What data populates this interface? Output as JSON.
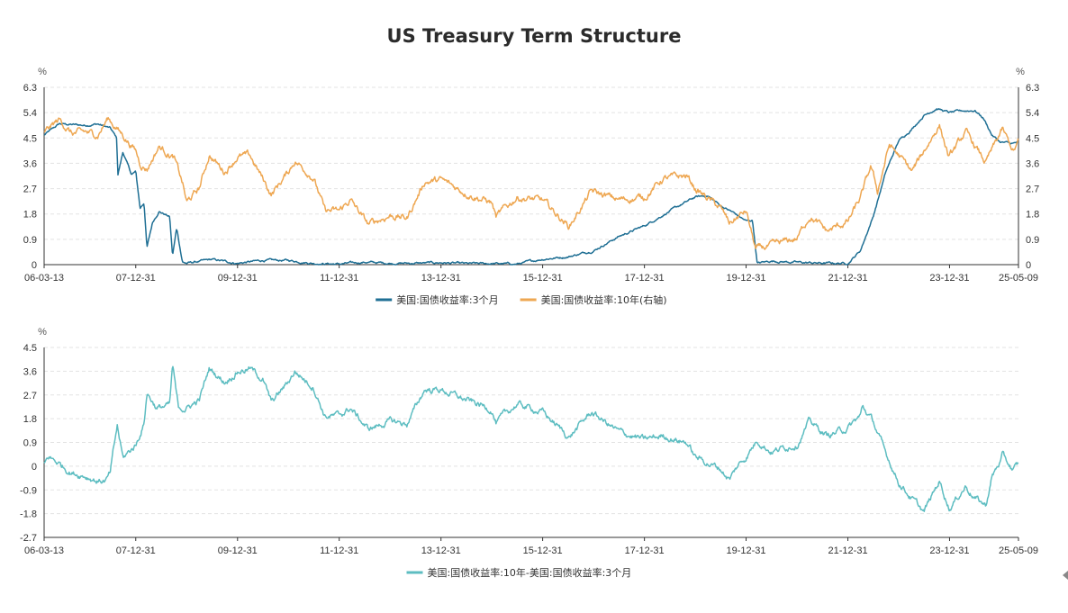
{
  "chart_data": [
    {
      "type": "line",
      "title": "US Treasury Term Structure",
      "y_unit_left": "%",
      "y_unit_right": "%",
      "ylim_left": [
        0,
        6.3
      ],
      "ylim_right": [
        0,
        6.3
      ],
      "y_ticks": [
        "6.3",
        "5.4",
        "4.5",
        "3.6",
        "2.7",
        "1.8",
        "0.9",
        "0"
      ],
      "x_ticks": [
        "06-03-13",
        "07-12-31",
        "09-12-31",
        "11-12-31",
        "13-12-31",
        "15-12-31",
        "17-12-31",
        "19-12-31",
        "21-12-31",
        "23-12-31",
        "25-05-09"
      ],
      "grid": true,
      "legend_position": "bottom",
      "series": [
        {
          "name": "美国:国债收益率:3个月",
          "color": "#1f6f94",
          "axis": "left",
          "points": [
            [
              "2006-03-13",
              4.6
            ],
            [
              "2006-06-30",
              5.0
            ],
            [
              "2006-12-31",
              4.95
            ],
            [
              "2007-03-31",
              5.0
            ],
            [
              "2007-06-30",
              4.85
            ],
            [
              "2007-08-15",
              4.5
            ],
            [
              "2007-08-25",
              3.2
            ],
            [
              "2007-09-30",
              4.0
            ],
            [
              "2007-11-30",
              3.2
            ],
            [
              "2007-12-31",
              3.3
            ],
            [
              "2008-01-31",
              2.0
            ],
            [
              "2008-02-29",
              2.2
            ],
            [
              "2008-03-20",
              0.6
            ],
            [
              "2008-04-30",
              1.5
            ],
            [
              "2008-06-15",
              1.9
            ],
            [
              "2008-08-31",
              1.7
            ],
            [
              "2008-09-20",
              0.3
            ],
            [
              "2008-10-20",
              1.3
            ],
            [
              "2008-11-30",
              0.1
            ],
            [
              "2008-12-31",
              0.05
            ],
            [
              "2009-06-30",
              0.18
            ],
            [
              "2009-12-31",
              0.05
            ],
            [
              "2010-06-30",
              0.15
            ],
            [
              "2010-12-31",
              0.15
            ],
            [
              "2011-06-30",
              0.05
            ],
            [
              "2011-12-31",
              0.02
            ],
            [
              "2012-06-30",
              0.09
            ],
            [
              "2012-12-31",
              0.05
            ],
            [
              "2013-06-30",
              0.05
            ],
            [
              "2013-12-31",
              0.07
            ],
            [
              "2014-06-30",
              0.03
            ],
            [
              "2014-12-31",
              0.04
            ],
            [
              "2015-06-30",
              0.02
            ],
            [
              "2015-12-31",
              0.2
            ],
            [
              "2016-06-30",
              0.28
            ],
            [
              "2016-12-31",
              0.5
            ],
            [
              "2017-06-30",
              1.0
            ],
            [
              "2017-12-31",
              1.38
            ],
            [
              "2018-06-30",
              1.9
            ],
            [
              "2018-12-31",
              2.4
            ],
            [
              "2019-03-31",
              2.45
            ],
            [
              "2019-06-30",
              2.1
            ],
            [
              "2019-09-30",
              1.85
            ],
            [
              "2019-12-31",
              1.55
            ],
            [
              "2020-02-15",
              1.57
            ],
            [
              "2020-03-20",
              0.05
            ],
            [
              "2020-06-30",
              0.13
            ],
            [
              "2020-12-31",
              0.08
            ],
            [
              "2021-06-30",
              0.05
            ],
            [
              "2021-12-31",
              0.05
            ],
            [
              "2022-03-31",
              0.5
            ],
            [
              "2022-06-30",
              1.7
            ],
            [
              "2022-09-30",
              3.3
            ],
            [
              "2022-12-31",
              4.4
            ],
            [
              "2023-03-31",
              4.8
            ],
            [
              "2023-06-30",
              5.3
            ],
            [
              "2023-09-30",
              5.55
            ],
            [
              "2023-12-31",
              5.4
            ],
            [
              "2024-03-31",
              5.46
            ],
            [
              "2024-06-30",
              5.48
            ],
            [
              "2024-08-31",
              5.2
            ],
            [
              "2024-10-31",
              4.6
            ],
            [
              "2024-12-31",
              4.35
            ],
            [
              "2025-03-31",
              4.3
            ],
            [
              "2025-05-09",
              4.35
            ]
          ]
        },
        {
          "name": "美国:国债收益率:10年(右轴)",
          "color": "#eea752",
          "axis": "right",
          "points": [
            [
              "2006-03-13",
              4.7
            ],
            [
              "2006-06-30",
              5.15
            ],
            [
              "2006-09-30",
              4.65
            ],
            [
              "2006-12-31",
              4.7
            ],
            [
              "2007-03-31",
              4.6
            ],
            [
              "2007-06-15",
              5.2
            ],
            [
              "2007-09-30",
              4.6
            ],
            [
              "2007-12-31",
              4.05
            ],
            [
              "2008-01-31",
              3.6
            ],
            [
              "2008-03-20",
              3.4
            ],
            [
              "2008-06-15",
              4.2
            ],
            [
              "2008-09-30",
              3.8
            ],
            [
              "2008-11-30",
              2.9
            ],
            [
              "2008-12-31",
              2.2
            ],
            [
              "2009-03-31",
              2.7
            ],
            [
              "2009-06-10",
              3.9
            ],
            [
              "2009-09-30",
              3.3
            ],
            [
              "2009-12-31",
              3.85
            ],
            [
              "2010-03-31",
              3.85
            ],
            [
              "2010-08-31",
              2.5
            ],
            [
              "2010-12-31",
              3.3
            ],
            [
              "2011-02-15",
              3.7
            ],
            [
              "2011-06-30",
              3.1
            ],
            [
              "2011-09-20",
              1.9
            ],
            [
              "2011-12-31",
              1.9
            ],
            [
              "2012-03-20",
              2.3
            ],
            [
              "2012-07-25",
              1.43
            ],
            [
              "2012-12-31",
              1.75
            ],
            [
              "2013-05-01",
              1.65
            ],
            [
              "2013-09-05",
              2.95
            ],
            [
              "2013-12-31",
              3.0
            ],
            [
              "2014-06-30",
              2.55
            ],
            [
              "2014-12-31",
              2.2
            ],
            [
              "2015-01-31",
              1.68
            ],
            [
              "2015-06-30",
              2.4
            ],
            [
              "2015-12-31",
              2.27
            ],
            [
              "2016-07-08",
              1.36
            ],
            [
              "2016-12-15",
              2.6
            ],
            [
              "2017-06-30",
              2.3
            ],
            [
              "2017-12-31",
              2.4
            ],
            [
              "2018-05-15",
              3.05
            ],
            [
              "2018-10-31",
              3.15
            ],
            [
              "2018-12-31",
              2.7
            ],
            [
              "2019-06-30",
              2.0
            ],
            [
              "2019-09-03",
              1.47
            ],
            [
              "2019-12-31",
              1.9
            ],
            [
              "2020-03-09",
              0.54
            ],
            [
              "2020-06-30",
              0.66
            ],
            [
              "2020-12-31",
              0.93
            ],
            [
              "2021-03-31",
              1.74
            ],
            [
              "2021-08-03",
              1.18
            ],
            [
              "2021-12-31",
              1.52
            ],
            [
              "2022-03-31",
              2.35
            ],
            [
              "2022-06-14",
              3.48
            ],
            [
              "2022-08-01",
              2.6
            ],
            [
              "2022-10-24",
              4.25
            ],
            [
              "2022-12-31",
              3.88
            ],
            [
              "2023-04-06",
              3.3
            ],
            [
              "2023-10-19",
              4.98
            ],
            [
              "2023-12-27",
              3.8
            ],
            [
              "2024-04-25",
              4.7
            ],
            [
              "2024-09-16",
              3.62
            ],
            [
              "2025-01-13",
              4.79
            ],
            [
              "2025-04-04",
              4.0
            ],
            [
              "2025-05-09",
              4.37
            ]
          ]
        }
      ]
    },
    {
      "type": "line",
      "y_unit": "%",
      "ylim": [
        -2.7,
        4.5
      ],
      "y_ticks": [
        "4.5",
        "3.6",
        "2.7",
        "1.8",
        "0.9",
        "0",
        "-0.9",
        "-1.8",
        "-2.7"
      ],
      "x_ticks": [
        "06-03-13",
        "07-12-31",
        "09-12-31",
        "11-12-31",
        "13-12-31",
        "15-12-31",
        "17-12-31",
        "19-12-31",
        "21-12-31",
        "23-12-31",
        "25-05-09"
      ],
      "grid": true,
      "legend_position": "bottom",
      "series": [
        {
          "name": "美国:国债收益率:10年-美国:国债收益率:3个月",
          "color": "#5dbdc1",
          "points": [
            [
              "2006-03-13",
              0.1
            ],
            [
              "2006-04-15",
              0.35
            ],
            [
              "2006-06-30",
              0.1
            ],
            [
              "2006-09-30",
              -0.25
            ],
            [
              "2006-12-31",
              -0.35
            ],
            [
              "2007-03-31",
              -0.55
            ],
            [
              "2007-05-31",
              -0.55
            ],
            [
              "2007-06-30",
              -0.3
            ],
            [
              "2007-08-20",
              1.5
            ],
            [
              "2007-09-30",
              0.3
            ],
            [
              "2007-12-31",
              0.8
            ],
            [
              "2008-02-28",
              1.6
            ],
            [
              "2008-03-20",
              2.8
            ],
            [
              "2008-05-31",
              2.2
            ],
            [
              "2008-08-31",
              2.3
            ],
            [
              "2008-09-20",
              3.8
            ],
            [
              "2008-10-31",
              2.2
            ],
            [
              "2008-12-31",
              2.2
            ],
            [
              "2009-03-31",
              2.5
            ],
            [
              "2009-06-10",
              3.7
            ],
            [
              "2009-09-30",
              3.2
            ],
            [
              "2009-12-31",
              3.6
            ],
            [
              "2010-03-31",
              3.7
            ],
            [
              "2010-06-30",
              3.3
            ],
            [
              "2010-08-31",
              2.4
            ],
            [
              "2010-12-31",
              3.2
            ],
            [
              "2011-02-15",
              3.6
            ],
            [
              "2011-06-30",
              3.0
            ],
            [
              "2011-09-20",
              1.9
            ],
            [
              "2011-12-31",
              1.9
            ],
            [
              "2012-03-20",
              2.2
            ],
            [
              "2012-07-25",
              1.4
            ],
            [
              "2012-12-31",
              1.7
            ],
            [
              "2013-05-01",
              1.6
            ],
            [
              "2013-09-05",
              2.9
            ],
            [
              "2013-12-31",
              2.9
            ],
            [
              "2014-06-30",
              2.5
            ],
            [
              "2014-12-31",
              2.15
            ],
            [
              "2015-01-31",
              1.65
            ],
            [
              "2015-06-30",
              2.35
            ],
            [
              "2015-12-31",
              2.05
            ],
            [
              "2016-07-08",
              1.1
            ],
            [
              "2016-12-15",
              2.05
            ],
            [
              "2017-06-30",
              1.3
            ],
            [
              "2017-12-31",
              1.0
            ],
            [
              "2018-05-15",
              1.15
            ],
            [
              "2018-10-31",
              0.9
            ],
            [
              "2018-12-31",
              0.35
            ],
            [
              "2019-06-30",
              -0.1
            ],
            [
              "2019-09-03",
              -0.5
            ],
            [
              "2019-10-31",
              0.0
            ],
            [
              "2019-12-31",
              0.35
            ],
            [
              "2020-03-20",
              1.0
            ],
            [
              "2020-06-30",
              0.55
            ],
            [
              "2020-12-31",
              0.85
            ],
            [
              "2021-03-31",
              1.7
            ],
            [
              "2021-08-03",
              1.15
            ],
            [
              "2021-12-31",
              1.45
            ],
            [
              "2022-03-31",
              1.9
            ],
            [
              "2022-04-15",
              2.25
            ],
            [
              "2022-06-30",
              1.7
            ],
            [
              "2022-09-30",
              0.45
            ],
            [
              "2022-10-24",
              0.2
            ],
            [
              "2022-12-31",
              -0.6
            ],
            [
              "2023-03-31",
              -1.2
            ],
            [
              "2023-06-30",
              -1.75
            ],
            [
              "2023-10-19",
              -0.55
            ],
            [
              "2023-12-31",
              -1.6
            ],
            [
              "2024-04-25",
              -0.75
            ],
            [
              "2024-06-30",
              -1.2
            ],
            [
              "2024-09-16",
              -1.5
            ],
            [
              "2024-10-31",
              -0.4
            ],
            [
              "2024-12-31",
              0.2
            ],
            [
              "2025-01-13",
              0.4
            ],
            [
              "2025-03-31",
              -0.15
            ],
            [
              "2025-05-09",
              0.05
            ]
          ]
        }
      ]
    }
  ]
}
